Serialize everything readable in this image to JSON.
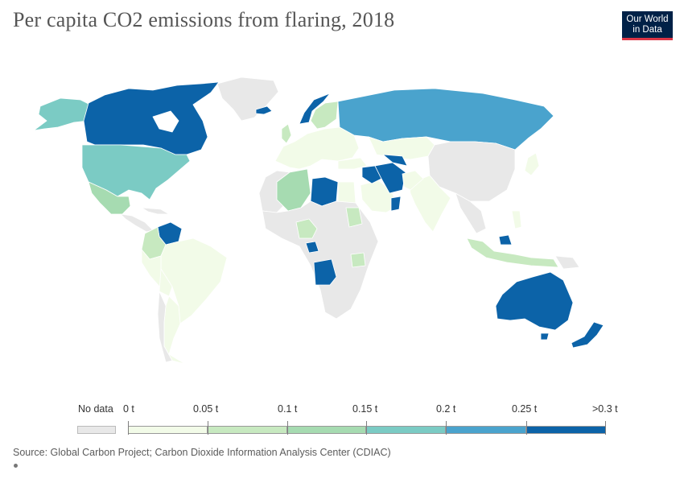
{
  "header": {
    "title": "Per capita CO2 emissions from flaring, 2018",
    "logo_line1": "Our World",
    "logo_line2": "in Data"
  },
  "legend": {
    "no_data_label": "No data",
    "tick_labels": [
      "0 t",
      "0.05 t",
      "0.1 t",
      "0.15 t",
      "0.2 t",
      "0.25 t",
      ">0.3 t"
    ],
    "bin_colors": [
      "#f2fbe8",
      "#c7e9c0",
      "#a6dbb1",
      "#7bcbc4",
      "#4aa3cd",
      "#0c63a8"
    ],
    "no_data_color": "#e8e8e8"
  },
  "footer": {
    "source": "Source: Global Carbon Project; Carbon Dioxide Information Analysis Center (CDIAC)"
  },
  "map_data": {
    "year": 2018,
    "unit": "t",
    "regions": [
      {
        "name": "Canada",
        "bin": ">0.3 t",
        "color": "#0c63a8"
      },
      {
        "name": "Greenland",
        "bin": "No data",
        "color": "#e8e8e8"
      },
      {
        "name": "United States",
        "bin": "0.15–0.2 t",
        "color": "#7bcbc4"
      },
      {
        "name": "Alaska",
        "bin": "0.15–0.2 t",
        "color": "#7bcbc4"
      },
      {
        "name": "Mexico",
        "bin": "0.1–0.15 t",
        "color": "#a6dbb1"
      },
      {
        "name": "Venezuela",
        "bin": ">0.3 t",
        "color": "#0c63a8"
      },
      {
        "name": "South America (others)",
        "bin": "0–0.05 t",
        "color": "#f2fbe8"
      },
      {
        "name": "Norway",
        "bin": ">0.3 t",
        "color": "#0c63a8"
      },
      {
        "name": "Iceland",
        "bin": ">0.3 t",
        "color": "#0c63a8"
      },
      {
        "name": "Europe (others)",
        "bin": "0–0.05 t",
        "color": "#f2fbe8"
      },
      {
        "name": "Russia",
        "bin": "0.2–0.25 t",
        "color": "#4aa3cd"
      },
      {
        "name": "Algeria",
        "bin": "0.1–0.15 t",
        "color": "#a6dbb1"
      },
      {
        "name": "Libya",
        "bin": ">0.3 t",
        "color": "#0c63a8"
      },
      {
        "name": "Nigeria",
        "bin": "0.05–0.1 t",
        "color": "#c7e9c0"
      },
      {
        "name": "Gabon",
        "bin": ">0.3 t",
        "color": "#0c63a8"
      },
      {
        "name": "Angola",
        "bin": ">0.3 t",
        "color": "#0c63a8"
      },
      {
        "name": "Iran",
        "bin": ">0.3 t",
        "color": "#0c63a8"
      },
      {
        "name": "Iraq",
        "bin": ">0.3 t",
        "color": "#0c63a8"
      },
      {
        "name": "Oman",
        "bin": ">0.3 t",
        "color": "#0c63a8"
      },
      {
        "name": "Turkmenistan",
        "bin": ">0.3 t",
        "color": "#0c63a8"
      },
      {
        "name": "Saudi Arabia",
        "bin": "0–0.05 t",
        "color": "#f2fbe8"
      },
      {
        "name": "India",
        "bin": "0–0.05 t",
        "color": "#f2fbe8"
      },
      {
        "name": "China",
        "bin": "No data",
        "color": "#e8e8e8"
      },
      {
        "name": "Brunei",
        "bin": ">0.3 t",
        "color": "#0c63a8"
      },
      {
        "name": "Indonesia",
        "bin": "0.05–0.1 t",
        "color": "#c7e9c0"
      },
      {
        "name": "Australia",
        "bin": ">0.3 t",
        "color": "#0c63a8"
      },
      {
        "name": "New Zealand",
        "bin": ">0.3 t",
        "color": "#0c63a8"
      }
    ]
  }
}
